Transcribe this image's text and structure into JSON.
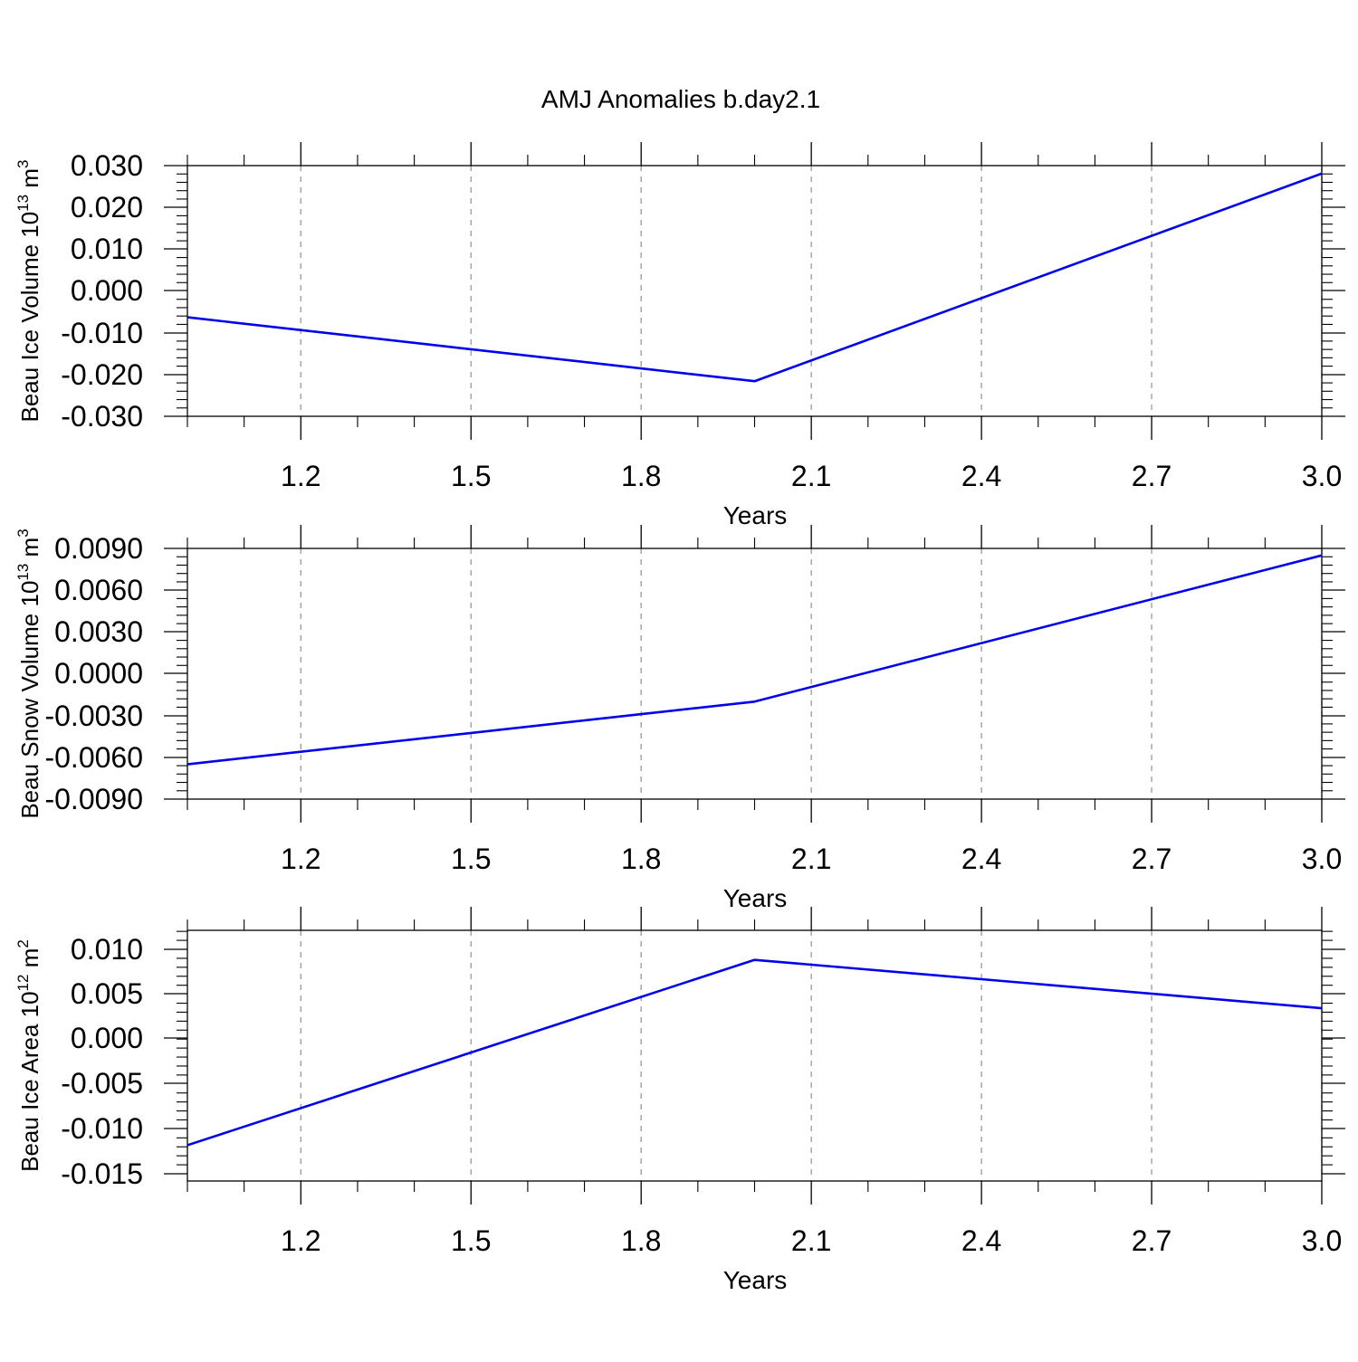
{
  "title": "AMJ Anomalies b.day2.1",
  "chart_data": [
    {
      "type": "line",
      "xlabel": "Years",
      "ylabel": {
        "text": "Beau Ice Volume 10",
        "sup": "13",
        "unit": " m",
        "unit_sup": "3"
      },
      "x_ticks": [
        "1.2",
        "1.5",
        "1.8",
        "2.1",
        "2.4",
        "2.7",
        "3.0"
      ],
      "y_ticks": [
        "0.030",
        "0.020",
        "0.010",
        "0.000",
        "-0.010",
        "-0.020",
        "-0.030"
      ],
      "xlim": [
        1.0,
        3.0
      ],
      "ylim": [
        -0.03,
        0.03
      ],
      "grid": "vertical dashed",
      "line_color": "#0000ee",
      "series": [
        {
          "x": [
            1.0,
            2.0,
            3.0
          ],
          "y": [
            -0.0063,
            -0.0216,
            0.0281
          ]
        }
      ]
    },
    {
      "type": "line",
      "xlabel": "Years",
      "ylabel": {
        "text": "Beau Snow Volume 10",
        "sup": "13",
        "unit": " m",
        "unit_sup": "3"
      },
      "x_ticks": [
        "1.2",
        "1.5",
        "1.8",
        "2.1",
        "2.4",
        "2.7",
        "3.0"
      ],
      "y_ticks": [
        "0.0090",
        "0.0060",
        "0.0030",
        "0.0000",
        "-0.0030",
        "-0.0060",
        "-0.0090"
      ],
      "xlim": [
        1.0,
        3.0
      ],
      "ylim": [
        -0.009,
        0.009
      ],
      "grid": "vertical dashed",
      "line_color": "#0000ee",
      "series": [
        {
          "x": [
            1.0,
            2.0,
            3.0
          ],
          "y": [
            -0.0065,
            -0.002,
            0.0085
          ]
        }
      ]
    },
    {
      "type": "line",
      "xlabel": "Years",
      "ylabel": {
        "text": "Beau Ice Area 10",
        "sup": "12",
        "unit": " m",
        "unit_sup": "2"
      },
      "x_ticks": [
        "1.2",
        "1.5",
        "1.8",
        "2.1",
        "2.4",
        "2.7",
        "3.0"
      ],
      "y_ticks": [
        "0.010",
        "0.005",
        "0.000",
        "-0.005",
        "-0.010",
        "-0.015"
      ],
      "xlim": [
        1.0,
        3.0
      ],
      "ylim": [
        -0.016,
        0.012
      ],
      "grid": "vertical dashed",
      "line_color": "#0000ee",
      "series": [
        {
          "x": [
            1.0,
            2.0,
            3.0
          ],
          "y": [
            -0.012,
            0.0087,
            0.0033
          ]
        }
      ]
    }
  ]
}
